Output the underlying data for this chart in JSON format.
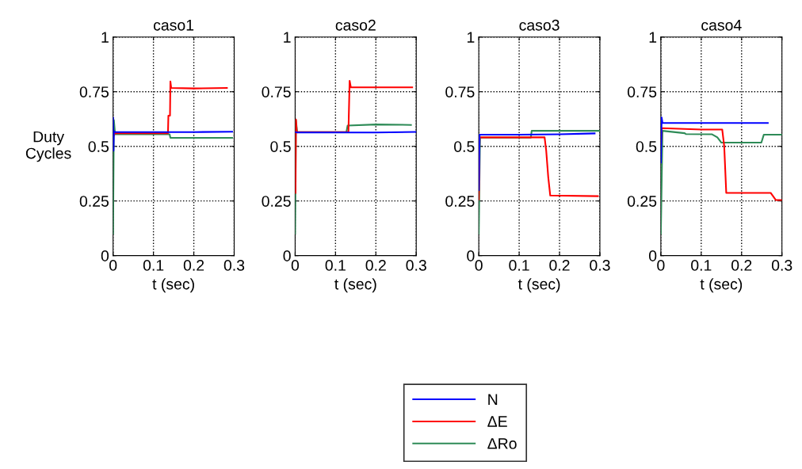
{
  "chart_data": [
    {
      "type": "line",
      "title": "caso1",
      "xlabel": "t (sec)",
      "ylabel": "Duty\nCycles",
      "xlim": [
        0,
        0.3
      ],
      "ylim": [
        0,
        1
      ],
      "xticks": [
        0,
        0.1,
        0.2,
        0.3
      ],
      "yticks": [
        0,
        0.25,
        0.5,
        0.75,
        1
      ],
      "grid": true,
      "legend": "bottom",
      "line_style": "solid",
      "series": [
        {
          "name": "N",
          "color": "#0000ff",
          "x": [
            0,
            0.001,
            0.002,
            0.004,
            0.1,
            0.2,
            0.295
          ],
          "values": [
            0.63,
            0.48,
            0.57,
            0.565,
            0.565,
            0.565,
            0.567
          ]
        },
        {
          "name": "ΔE",
          "color": "#ff0000",
          "x": [
            0.002,
            0.004,
            0.136,
            0.137,
            0.141,
            0.142,
            0.144,
            0.2,
            0.282
          ],
          "values": [
            0.55,
            0.56,
            0.56,
            0.64,
            0.64,
            0.797,
            0.767,
            0.765,
            0.767
          ]
        },
        {
          "name": "ΔRo",
          "color": "#2e8b57",
          "x": [
            0,
            0.002,
            0.005,
            0.14,
            0.142,
            0.295
          ],
          "values": [
            0.1,
            0.62,
            0.555,
            0.555,
            0.539,
            0.539
          ]
        }
      ]
    },
    {
      "type": "line",
      "title": "caso2",
      "xlabel": "t (sec)",
      "xlim": [
        0,
        0.3
      ],
      "ylim": [
        0,
        1
      ],
      "xticks": [
        0,
        0.1,
        0.2,
        0.3
      ],
      "yticks": [
        0,
        0.25,
        0.5,
        0.75,
        1
      ],
      "grid": true,
      "line_style": "solid",
      "series": [
        {
          "color": "#0000ff",
          "x": [
            0,
            0.005,
            0.13,
            0.2,
            0.3
          ],
          "values": [
            0.565,
            0.563,
            0.563,
            0.563,
            0.566
          ]
        },
        {
          "color": "#ff0000",
          "x": [
            0.001,
            0.002,
            0.004,
            0.132,
            0.135,
            0.138,
            0.2,
            0.29
          ],
          "values": [
            0.287,
            0.623,
            0.565,
            0.565,
            0.8,
            0.77,
            0.77,
            0.77
          ]
        },
        {
          "color": "#2e8b57",
          "x": [
            0,
            0.002,
            0.005,
            0.127,
            0.13,
            0.2,
            0.287
          ],
          "values": [
            0.1,
            0.62,
            0.565,
            0.565,
            0.595,
            0.6,
            0.598
          ]
        }
      ]
    },
    {
      "type": "line",
      "title": "caso3",
      "xlabel": "t (sec)",
      "xlim": [
        0,
        0.3
      ],
      "ylim": [
        0,
        1
      ],
      "xticks": [
        0,
        0.1,
        0.2,
        0.3
      ],
      "yticks": [
        0,
        0.25,
        0.5,
        0.75,
        1
      ],
      "grid": true,
      "line_style": "solid",
      "series": [
        {
          "color": "#0000ff",
          "x": [
            0,
            0.002,
            0.1,
            0.2,
            0.287
          ],
          "values": [
            0.3,
            0.553,
            0.553,
            0.555,
            0.559
          ]
        },
        {
          "color": "#ff0000",
          "x": [
            0,
            0.002,
            0.163,
            0.167,
            0.172,
            0.177,
            0.295
          ],
          "values": [
            0.257,
            0.541,
            0.541,
            0.48,
            0.36,
            0.275,
            0.272
          ]
        },
        {
          "color": "#2e8b57",
          "x": [
            0,
            0.003,
            0.129,
            0.131,
            0.3
          ],
          "values": [
            0.1,
            0.54,
            0.54,
            0.571,
            0.571
          ]
        }
      ]
    },
    {
      "type": "line",
      "title": "caso4",
      "xlabel": "t (sec)",
      "xlim": [
        0,
        0.3
      ],
      "ylim": [
        0,
        1
      ],
      "xticks": [
        0,
        0.1,
        0.2,
        0.3
      ],
      "yticks": [
        0,
        0.25,
        0.5,
        0.75,
        1
      ],
      "grid": true,
      "line_style": "solid",
      "series": [
        {
          "color": "#0000ff",
          "x": [
            0,
            0.002,
            0.004,
            0.1,
            0.265
          ],
          "values": [
            0.426,
            0.632,
            0.607,
            0.607,
            0.607
          ]
        },
        {
          "color": "#ff0000",
          "x": [
            0,
            0.002,
            0.1,
            0.152,
            0.157,
            0.162,
            0.272,
            0.285,
            0.3
          ],
          "values": [
            0.5,
            0.583,
            0.577,
            0.577,
            0.5,
            0.287,
            0.287,
            0.254,
            0.254
          ]
        },
        {
          "color": "#2e8b57",
          "x": [
            0,
            0.004,
            0.059,
            0.062,
            0.127,
            0.14,
            0.15,
            0.249,
            0.255,
            0.3
          ],
          "values": [
            0.1,
            0.571,
            0.56,
            0.556,
            0.555,
            0.541,
            0.517,
            0.517,
            0.553,
            0.553
          ]
        }
      ]
    }
  ]
}
